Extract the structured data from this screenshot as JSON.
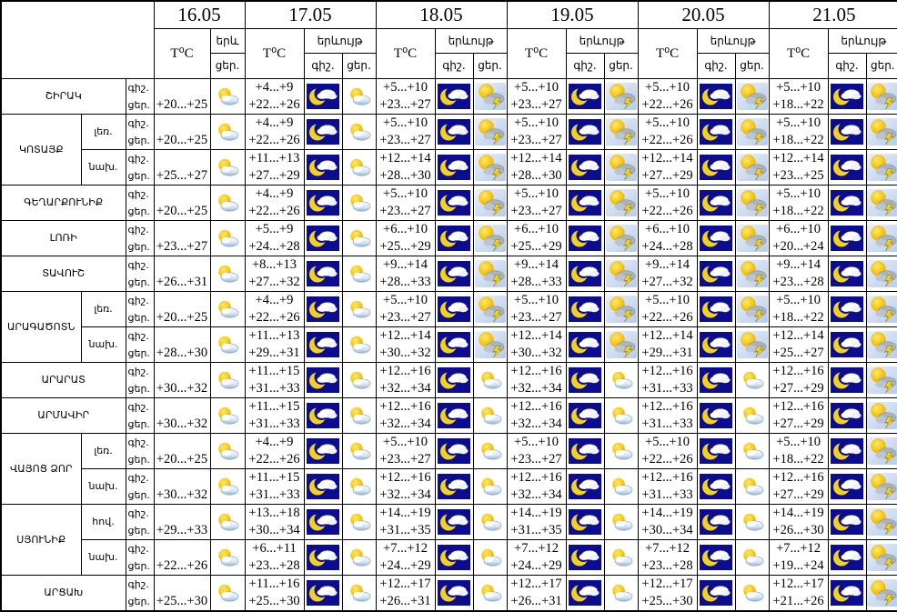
{
  "table": {
    "corner": "",
    "dates": [
      "16.05",
      "17.05",
      "18.05",
      "19.05",
      "20.05",
      "21.05"
    ],
    "headers": {
      "temp": "T⁰C",
      "phenomenon": "երևույթ",
      "phenomenon_short": "երև",
      "night": "գիշ.",
      "day": "ցեր."
    },
    "labels": {
      "night": "գիշ.",
      "day": "ցեր."
    },
    "icons": {
      "night": "moon-cloud-icon",
      "day_plain": "sun-cloud-icon",
      "day_thunder": "sun-cloud-lightning-icon"
    },
    "colors": {
      "night_icon_bg": "#0c0c91",
      "sun_yellow": "#f7c913",
      "thunder_bg": "#c7d7ef",
      "border": "#000000"
    },
    "rows": [
      {
        "region": "ՇԻՐԱԿ",
        "rowspan": 1,
        "zone": "",
        "d16": "+20...+25",
        "cols": [
          {
            "n": "+4...+9",
            "d": "+22...+26",
            "i": "p"
          },
          {
            "n": "+5...+10",
            "d": "+23...+27",
            "i": "t"
          },
          {
            "n": "+5...+10",
            "d": "+23...+27",
            "i": "t"
          },
          {
            "n": "+5...+10",
            "d": "+22...+26",
            "i": "t"
          },
          {
            "n": "+5...+10",
            "d": "+18...+22",
            "i": "t"
          }
        ]
      },
      {
        "region": "ԿՈՏԱՅՔ",
        "rowspan": 2,
        "zone": "լեռ.",
        "d16": "+20...+25",
        "cols": [
          {
            "n": "+4...+9",
            "d": "+22...+26",
            "i": "p"
          },
          {
            "n": "+5...+10",
            "d": "+23...+27",
            "i": "t"
          },
          {
            "n": "+5...+10",
            "d": "+23...+27",
            "i": "t"
          },
          {
            "n": "+5...+10",
            "d": "+22...+26",
            "i": "t"
          },
          {
            "n": "+5...+10",
            "d": "+18...+22",
            "i": "t"
          }
        ]
      },
      {
        "region": "",
        "rowspan": 1,
        "zone": "նախ.",
        "d16": "+25...+27",
        "cols": [
          {
            "n": "+11...+13",
            "d": "+27...+29",
            "i": "p"
          },
          {
            "n": "+12...+14",
            "d": "+28...+30",
            "i": "t"
          },
          {
            "n": "+12...+14",
            "d": "+28...+30",
            "i": "t"
          },
          {
            "n": "+12...+14",
            "d": "+27...+29",
            "i": "t"
          },
          {
            "n": "+12...+14",
            "d": "+23...+25",
            "i": "t"
          }
        ]
      },
      {
        "region": "ԳԵՂԱՐՔՈՒՆԻՔ",
        "rowspan": 1,
        "zone": "",
        "d16": "+20...+25",
        "cols": [
          {
            "n": "+4...+9",
            "d": "+22...+26",
            "i": "p"
          },
          {
            "n": "+5...+10",
            "d": "+23...+27",
            "i": "t"
          },
          {
            "n": "+5...+10",
            "d": "+23...+27",
            "i": "t"
          },
          {
            "n": "+5...+10",
            "d": "+22...+26",
            "i": "t"
          },
          {
            "n": "+5...+10",
            "d": "+18...+22",
            "i": "t"
          }
        ]
      },
      {
        "region": "ԼՈՌԻ",
        "rowspan": 1,
        "zone": "",
        "d16": "+23...+27",
        "cols": [
          {
            "n": "+5...+9",
            "d": "+24...+28",
            "i": "p"
          },
          {
            "n": "+6...+10",
            "d": "+25...+29",
            "i": "t"
          },
          {
            "n": "+6...+10",
            "d": "+25...+29",
            "i": "t"
          },
          {
            "n": "+6...+10",
            "d": "+24...+28",
            "i": "t"
          },
          {
            "n": "+6...+10",
            "d": "+20...+24",
            "i": "t"
          }
        ]
      },
      {
        "region": "ՏԱՎՈՒՇ",
        "rowspan": 1,
        "zone": "",
        "d16": "+26...+31",
        "cols": [
          {
            "n": "+8...+13",
            "d": "+27...+32",
            "i": "p"
          },
          {
            "n": "+9...+14",
            "d": "+28...+33",
            "i": "t"
          },
          {
            "n": "+9...+14",
            "d": "+28...+33",
            "i": "t"
          },
          {
            "n": "+9...+14",
            "d": "+27...+32",
            "i": "t"
          },
          {
            "n": "+9...+14",
            "d": "+23...+28",
            "i": "t"
          }
        ]
      },
      {
        "region": "ԱՐԱԳԱԾՈՏՆ",
        "rowspan": 2,
        "zone": "լեռ.",
        "d16": "+20...+25",
        "cols": [
          {
            "n": "+4...+9",
            "d": "+22...+26",
            "i": "p"
          },
          {
            "n": "+5...+10",
            "d": "+23...+27",
            "i": "t"
          },
          {
            "n": "+5...+10",
            "d": "+23...+27",
            "i": "t"
          },
          {
            "n": "+5...+10",
            "d": "+22...+26",
            "i": "t"
          },
          {
            "n": "+5...+10",
            "d": "+18...+22",
            "i": "t"
          }
        ]
      },
      {
        "region": "",
        "rowspan": 1,
        "zone": "նախ.",
        "d16": "+28...+30",
        "cols": [
          {
            "n": "+11...+13",
            "d": "+29...+31",
            "i": "p"
          },
          {
            "n": "+12...+14",
            "d": "+30...+32",
            "i": "t"
          },
          {
            "n": "+12...+14",
            "d": "+30...+32",
            "i": "t"
          },
          {
            "n": "+12...+14",
            "d": "+29...+31",
            "i": "t"
          },
          {
            "n": "+12...+14",
            "d": "+25...+27",
            "i": "t"
          }
        ]
      },
      {
        "region": "ԱՐԱՐԱՏ",
        "rowspan": 1,
        "zone": "",
        "d16": "+30...+32",
        "cols": [
          {
            "n": "+11...+15",
            "d": "+31...+33",
            "i": "p"
          },
          {
            "n": "+12...+16",
            "d": "+32...+34",
            "i": "p"
          },
          {
            "n": "+12...+16",
            "d": "+32...+34",
            "i": "p"
          },
          {
            "n": "+12...+16",
            "d": "+31...+33",
            "i": "p"
          },
          {
            "n": "+12...+16",
            "d": "+27...+29",
            "i": "t"
          }
        ]
      },
      {
        "region": "ԱՐՄԱՎԻՐ",
        "rowspan": 1,
        "zone": "",
        "d16": "+30...+32",
        "cols": [
          {
            "n": "+11...+15",
            "d": "+31...+33",
            "i": "p"
          },
          {
            "n": "+12...+16",
            "d": "+32...+34",
            "i": "p"
          },
          {
            "n": "+12...+16",
            "d": "+32...+34",
            "i": "p"
          },
          {
            "n": "+12...+16",
            "d": "+31...+33",
            "i": "p"
          },
          {
            "n": "+12...+16",
            "d": "+27...+29",
            "i": "t"
          }
        ]
      },
      {
        "region": "ՎԱՅՈՑ ՁՈՐ",
        "rowspan": 2,
        "zone": "լեռ.",
        "d16": "+20...+25",
        "cols": [
          {
            "n": "+4...+9",
            "d": "+22...+26",
            "i": "p"
          },
          {
            "n": "+5...+10",
            "d": "+23...+27",
            "i": "p"
          },
          {
            "n": "+5...+10",
            "d": "+23...+27",
            "i": "p"
          },
          {
            "n": "+5...+10",
            "d": "+22...+26",
            "i": "p"
          },
          {
            "n": "+5...+10",
            "d": "+18...+22",
            "i": "t"
          }
        ]
      },
      {
        "region": "",
        "rowspan": 1,
        "zone": "նախ.",
        "d16": "+30...+32",
        "cols": [
          {
            "n": "+11...+15",
            "d": "+31...+33",
            "i": "p"
          },
          {
            "n": "+12...+16",
            "d": "+32...+34",
            "i": "p"
          },
          {
            "n": "+12...+16",
            "d": "+32...+34",
            "i": "p"
          },
          {
            "n": "+12...+16",
            "d": "+31...+33",
            "i": "p"
          },
          {
            "n": "+12...+16",
            "d": "+27...+29",
            "i": "t"
          }
        ]
      },
      {
        "region": "ՍՅՈՒՆԻՔ",
        "rowspan": 2,
        "zone": "հով.",
        "d16": "+29...+33",
        "cols": [
          {
            "n": "+13...+18",
            "d": "+30...+34",
            "i": "p"
          },
          {
            "n": "+14...+19",
            "d": "+31...+35",
            "i": "p"
          },
          {
            "n": "+14...+19",
            "d": "+31...+35",
            "i": "p"
          },
          {
            "n": "+14...+19",
            "d": "+30...+34",
            "i": "p"
          },
          {
            "n": "+14...+19",
            "d": "+26...+30",
            "i": "t"
          }
        ]
      },
      {
        "region": "",
        "rowspan": 1,
        "zone": "նախ.",
        "d16": "+22...+26",
        "cols": [
          {
            "n": "+6...+11",
            "d": "+23...+28",
            "i": "p"
          },
          {
            "n": "+7...+12",
            "d": "+24...+29",
            "i": "p"
          },
          {
            "n": "+7...+12",
            "d": "+24...+29",
            "i": "p"
          },
          {
            "n": "+7...+12",
            "d": "+23...+28",
            "i": "p"
          },
          {
            "n": "+7...+12",
            "d": "+19...+24",
            "i": "t"
          }
        ]
      },
      {
        "region": "ԱՐՑԱԽ",
        "rowspan": 1,
        "zone": "",
        "d16": "+25...+30",
        "cols": [
          {
            "n": "+11...+16",
            "d": "+25...+30",
            "i": "p"
          },
          {
            "n": "+12...+17",
            "d": "+26...+31",
            "i": "p"
          },
          {
            "n": "+12...+17",
            "d": "+26...+31",
            "i": "p"
          },
          {
            "n": "+12...+17",
            "d": "+25...+30",
            "i": "p"
          },
          {
            "n": "+12...+17",
            "d": "+21...+26",
            "i": "t"
          }
        ]
      }
    ]
  }
}
